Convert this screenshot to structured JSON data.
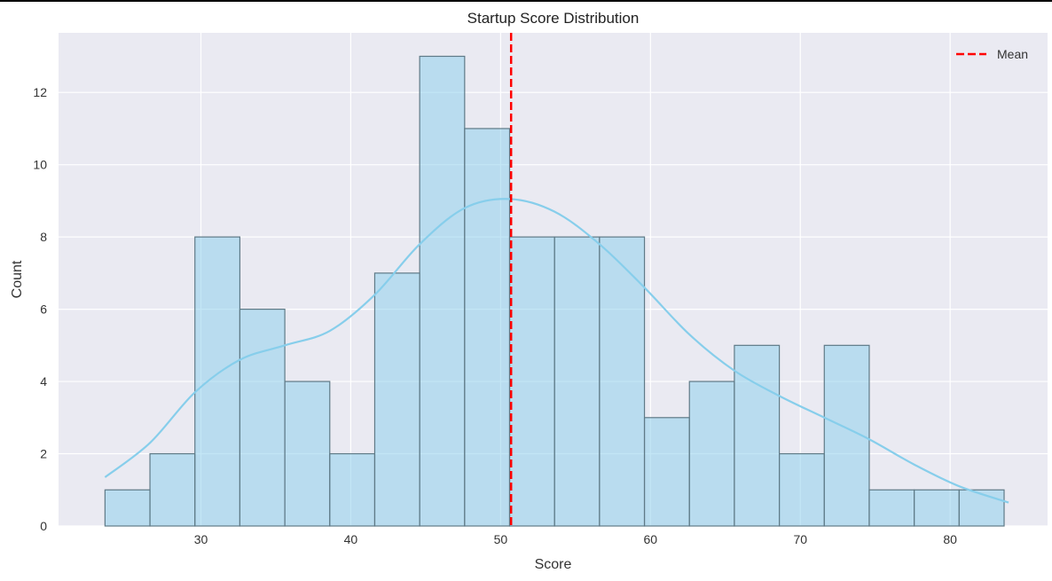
{
  "chart_data": {
    "type": "bar",
    "title": "Startup Score Distribution",
    "xlabel": "Score",
    "ylabel": "Count",
    "xlim": [
      20.5,
      86.5
    ],
    "ylim": [
      0,
      13.65
    ],
    "xticks": [
      30,
      40,
      50,
      60,
      70,
      80
    ],
    "yticks": [
      0,
      2,
      4,
      6,
      8,
      10,
      12
    ],
    "grid": true,
    "legend": {
      "placement": "top-right",
      "entries": [
        {
          "label": "Mean",
          "style": "dashed-line",
          "color": "#ff0000"
        }
      ]
    },
    "bins": {
      "edges": [
        23.6,
        26.6,
        29.6,
        32.6,
        35.6,
        38.6,
        41.6,
        44.6,
        47.6,
        50.6,
        53.6,
        56.6,
        59.6,
        62.6,
        65.6,
        68.6,
        71.6,
        74.6,
        77.6,
        80.6,
        83.6
      ],
      "counts": [
        1,
        2,
        8,
        6,
        4,
        2,
        7,
        13,
        11,
        8,
        8,
        8,
        3,
        4,
        5,
        2,
        5,
        1,
        1,
        1
      ]
    },
    "mean": 50.7,
    "kde": {
      "x": [
        23.6,
        26.6,
        29.6,
        32.6,
        35.6,
        38.6,
        41.6,
        44.6,
        47.6,
        50.6,
        53.6,
        56.6,
        59.6,
        62.6,
        65.6,
        68.6,
        71.6,
        74.6,
        77.6,
        80.6,
        83.9
      ],
      "y": [
        1.35,
        2.3,
        3.7,
        4.6,
        5.0,
        5.4,
        6.4,
        7.8,
        8.8,
        9.05,
        8.7,
        7.8,
        6.6,
        5.3,
        4.3,
        3.6,
        3.0,
        2.4,
        1.7,
        1.1,
        0.65
      ]
    },
    "colors": {
      "bar_fill": "#87ceeb",
      "bar_edge": "#5f7a87",
      "kde": "#87ceeb",
      "mean_line": "#ff0000",
      "plot_bg": "#eaeaf2",
      "grid": "#ffffff"
    }
  }
}
